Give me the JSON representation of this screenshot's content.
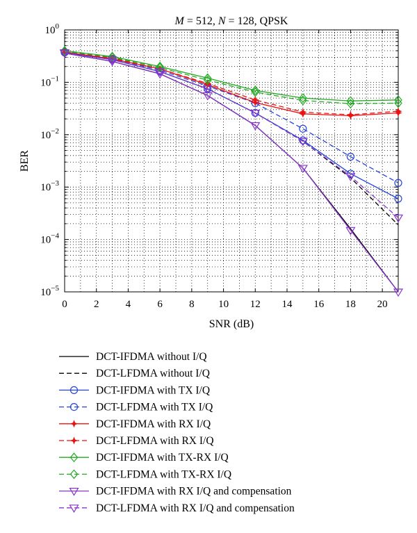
{
  "chart_data": {
    "type": "line",
    "title_parts": [
      "M",
      " = 512, ",
      "N",
      " = 128, QPSK"
    ],
    "xlabel": "SNR (dB)",
    "ylabel": "BER",
    "xlim": [
      0,
      21
    ],
    "ylim": [
      1e-05,
      1
    ],
    "yscale": "log",
    "grid": true,
    "legend_position": "below",
    "x_ticks": [
      0,
      2,
      4,
      6,
      8,
      10,
      12,
      14,
      16,
      18,
      20
    ],
    "x_tick_labels": [
      "0",
      "2",
      "4",
      "6",
      "8",
      "10",
      "12",
      "14",
      "16",
      "18",
      "20"
    ],
    "y_ticks": [
      {
        "value": 1,
        "base": "10",
        "exp": "0"
      },
      {
        "value": 0.1,
        "base": "10",
        "exp": "−1"
      },
      {
        "value": 0.01,
        "base": "10",
        "exp": "−2"
      },
      {
        "value": 0.001,
        "base": "10",
        "exp": "−3"
      },
      {
        "value": 0.0001,
        "base": "10",
        "exp": "−4"
      },
      {
        "value": 1e-05,
        "base": "10",
        "exp": "−5"
      }
    ],
    "x": [
      0,
      3,
      6,
      9,
      12,
      15,
      18,
      21
    ],
    "series": [
      {
        "name": "DCT-IFDMA without I/Q",
        "color": "#000000",
        "dash": "solid",
        "marker": "none",
        "values": [
          0.36,
          0.25,
          0.145,
          0.056,
          0.015,
          0.0023,
          0.00016,
          1e-05
        ]
      },
      {
        "name": "DCT-LFDMA without I/Q",
        "color": "#000000",
        "dash": "dashed",
        "marker": "none",
        "values": [
          0.37,
          0.27,
          0.16,
          0.075,
          0.026,
          0.0075,
          0.0015,
          0.00019
        ]
      },
      {
        "name": "DCT-IFDMA with TX I/Q",
        "color": "#2244dd",
        "dash": "solid",
        "marker": "circle",
        "values": [
          0.37,
          0.27,
          0.16,
          0.075,
          0.026,
          0.0078,
          0.0018,
          0.0006
        ]
      },
      {
        "name": "DCT-LFDMA with TX I/Q",
        "color": "#2244dd",
        "dash": "dashed",
        "marker": "circle",
        "values": [
          0.38,
          0.28,
          0.17,
          0.085,
          0.04,
          0.013,
          0.0038,
          0.0012
        ]
      },
      {
        "name": "DCT-IFDMA with RX I/Q",
        "color": "#ee1111",
        "dash": "solid",
        "marker": "star",
        "values": [
          0.38,
          0.28,
          0.18,
          0.09,
          0.041,
          0.025,
          0.023,
          0.026
        ]
      },
      {
        "name": "DCT-LFDMA with RX I/Q",
        "color": "#ee1111",
        "dash": "dashed",
        "marker": "star",
        "values": [
          0.38,
          0.29,
          0.18,
          0.095,
          0.046,
          0.027,
          0.024,
          0.028
        ]
      },
      {
        "name": "DCT-IFDMA with TX-RX I/Q",
        "color": "#22aa22",
        "dash": "solid",
        "marker": "diamond",
        "values": [
          0.4,
          0.31,
          0.2,
          0.12,
          0.07,
          0.05,
          0.044,
          0.046
        ]
      },
      {
        "name": "DCT-LFDMA with TX-RX I/Q",
        "color": "#22aa22",
        "dash": "dashed",
        "marker": "diamond",
        "values": [
          0.39,
          0.3,
          0.19,
          0.11,
          0.065,
          0.045,
          0.039,
          0.04
        ]
      },
      {
        "name": "DCT-IFDMA with RX I/Q and compensation",
        "color": "#8833cc",
        "dash": "solid",
        "marker": "triangle-down",
        "values": [
          0.36,
          0.25,
          0.145,
          0.056,
          0.015,
          0.0023,
          0.00015,
          1e-05
        ]
      },
      {
        "name": "DCT-LFDMA with RX I/Q and compensation",
        "color": "#8833cc",
        "dash": "dashed",
        "marker": "triangle-down",
        "values": [
          0.37,
          0.27,
          0.16,
          0.075,
          0.026,
          0.0075,
          0.0016,
          0.00026
        ]
      }
    ]
  }
}
